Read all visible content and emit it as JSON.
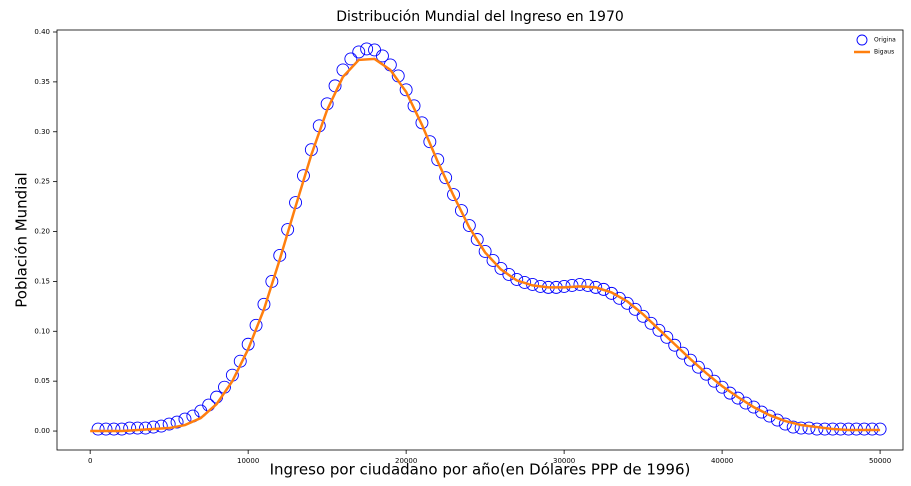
{
  "chart_data": {
    "type": "scatter",
    "title": "Distribución Mundial del Ingreso en 1970",
    "x_label": "Ingreso por ciudadano por año(en Dólares PPP de 1996)",
    "y_label": "Población Mundial",
    "xlim": [
      -2100,
      51450
    ],
    "ylim": [
      -0.019,
      0.402
    ],
    "xticks": [
      0,
      10000,
      20000,
      30000,
      40000,
      50000
    ],
    "yticks": [
      {
        "value": 0,
        "label": "0.00"
      },
      {
        "value": 0.05,
        "label": "0.05"
      },
      {
        "value": 0.1,
        "label": "0.10"
      },
      {
        "value": 0.15,
        "label": "0.15"
      },
      {
        "value": 0.2,
        "label": "0.20"
      },
      {
        "value": 0.25,
        "label": "0.25"
      },
      {
        "value": 0.3,
        "label": "0.30"
      },
      {
        "value": 0.35,
        "label": "0.35"
      },
      {
        "value": 0.4,
        "label": "0.40"
      }
    ],
    "legend": "upper right",
    "series": [
      {
        "name": "Origina",
        "type": "scatter",
        "color": "#0000ff",
        "x": [
          500,
          1000,
          1500,
          2000,
          2500,
          3000,
          3500,
          4000,
          4500,
          5000,
          5500,
          6000,
          6500,
          7000,
          7500,
          8000,
          8500,
          9000,
          9500,
          10000,
          10500,
          11000,
          11500,
          12000,
          12500,
          13000,
          13500,
          14000,
          14500,
          15000,
          15500,
          16000,
          16500,
          17000,
          17500,
          18000,
          18500,
          19000,
          19500,
          20000,
          20500,
          21000,
          21500,
          22000,
          22500,
          23000,
          23500,
          24000,
          24500,
          25000,
          25500,
          26000,
          26500,
          27000,
          27500,
          28000,
          28500,
          29000,
          29500,
          30000,
          30500,
          31000,
          31500,
          32000,
          32500,
          33000,
          33500,
          34000,
          34500,
          35000,
          35500,
          36000,
          36500,
          37000,
          37500,
          38000,
          38500,
          39000,
          39500,
          40000,
          40500,
          41000,
          41500,
          42000,
          42500,
          43000,
          43500,
          44000,
          44500,
          45000,
          45500,
          46000,
          46500,
          47000,
          47500,
          48000,
          48500,
          49000,
          49500,
          50000
        ],
        "values": [
          0.002,
          0.002,
          0.002,
          0.002,
          0.003,
          0.003,
          0.003,
          0.004,
          0.005,
          0.007,
          0.009,
          0.012,
          0.015,
          0.02,
          0.026,
          0.034,
          0.044,
          0.056,
          0.07,
          0.087,
          0.106,
          0.127,
          0.15,
          0.176,
          0.202,
          0.229,
          0.256,
          0.282,
          0.306,
          0.328,
          0.346,
          0.362,
          0.373,
          0.38,
          0.383,
          0.382,
          0.376,
          0.367,
          0.356,
          0.342,
          0.326,
          0.309,
          0.29,
          0.272,
          0.254,
          0.237,
          0.221,
          0.206,
          0.192,
          0.18,
          0.171,
          0.163,
          0.157,
          0.152,
          0.149,
          0.147,
          0.145,
          0.144,
          0.144,
          0.145,
          0.146,
          0.147,
          0.146,
          0.144,
          0.142,
          0.138,
          0.133,
          0.128,
          0.122,
          0.115,
          0.108,
          0.101,
          0.094,
          0.086,
          0.078,
          0.071,
          0.064,
          0.057,
          0.05,
          0.044,
          0.038,
          0.033,
          0.028,
          0.024,
          0.019,
          0.015,
          0.011,
          0.007,
          0.004,
          0.003,
          0.003,
          0.002,
          0.002,
          0.002,
          0.002,
          0.002,
          0.002,
          0.002,
          0.002,
          0.002
        ]
      },
      {
        "name": "Bigaus",
        "type": "line",
        "color": "#ff7f0e",
        "x": [
          0,
          1000,
          2000,
          3000,
          4000,
          5000,
          6000,
          7000,
          8000,
          9000,
          10000,
          11000,
          12000,
          13000,
          14000,
          15000,
          16000,
          17000,
          18000,
          19000,
          20000,
          21000,
          22000,
          23000,
          24000,
          25000,
          26000,
          27000,
          28000,
          29000,
          30000,
          31000,
          32000,
          33000,
          34000,
          35000,
          36000,
          37000,
          38000,
          39000,
          40000,
          41000,
          42000,
          43000,
          44000,
          45000,
          46000,
          47000,
          48000,
          49000,
          50000
        ],
        "values": [
          0.0,
          0.0,
          0.0,
          0.001,
          0.002,
          0.003,
          0.006,
          0.013,
          0.027,
          0.05,
          0.082,
          0.122,
          0.172,
          0.225,
          0.277,
          0.322,
          0.355,
          0.372,
          0.373,
          0.362,
          0.34,
          0.307,
          0.27,
          0.236,
          0.204,
          0.179,
          0.162,
          0.151,
          0.146,
          0.144,
          0.144,
          0.145,
          0.144,
          0.139,
          0.13,
          0.117,
          0.102,
          0.087,
          0.072,
          0.058,
          0.045,
          0.034,
          0.024,
          0.016,
          0.01,
          0.006,
          0.004,
          0.002,
          0.001,
          0.001,
          0.001
        ]
      }
    ]
  }
}
